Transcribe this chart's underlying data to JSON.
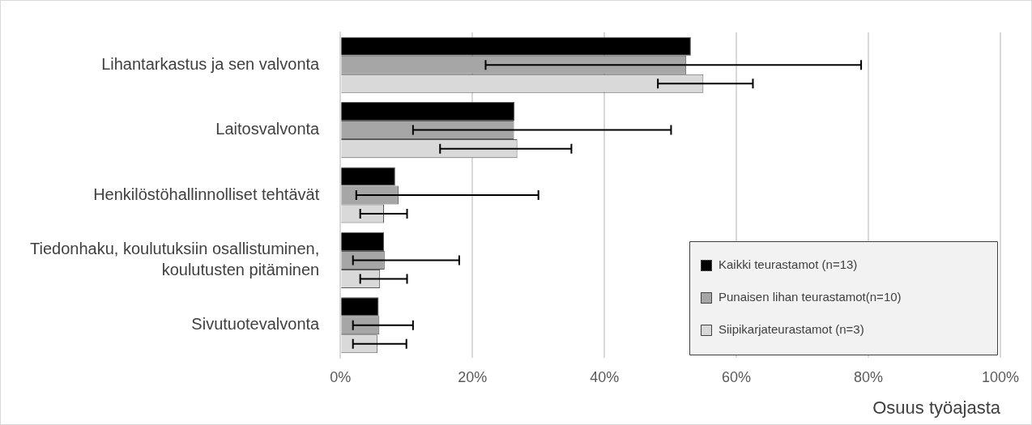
{
  "chart_data": {
    "type": "bar",
    "orientation": "horizontal",
    "xlabel": "Osuus työajasta",
    "categories": [
      "Lihantarkastus ja sen valvonta",
      "Laitosvalvonta",
      "Henkilöstöhallinnolliset tehtävät",
      "Tiedonhaku, koulutuksiin osallistuminen, koulutusten pitäminen",
      "Sivutuotevalvonta"
    ],
    "series": [
      {
        "name": "Kaikki teurastamot (n=13)",
        "color": "#000000",
        "values": [
          53.1,
          26.4,
          8.3,
          6.6,
          5.8
        ]
      },
      {
        "name": "Punaisen lihan teurastamot(n=10)",
        "color": "#a6a6a6",
        "values": [
          52.4,
          26.3,
          8.8,
          6.7,
          5.9
        ],
        "errors": [
          [
            22.0,
            78.9
          ],
          [
            11.0,
            50.1
          ],
          [
            2.4,
            30.0
          ],
          [
            1.9,
            18.0
          ],
          [
            1.9,
            11.0
          ]
        ]
      },
      {
        "name": "Siipikarjateurastamot (n=3)",
        "color": "#d9d9d9",
        "values": [
          55.0,
          26.8,
          6.6,
          6.0,
          5.6
        ],
        "errors": [
          [
            48.1,
            62.5
          ],
          [
            15.1,
            35.0
          ],
          [
            3.0,
            10.1
          ],
          [
            3.0,
            10.1
          ],
          [
            1.9,
            10.0
          ]
        ]
      }
    ],
    "xlim": [
      0,
      100
    ],
    "xticks": [
      {
        "value": 0,
        "label": "0%"
      },
      {
        "value": 20,
        "label": "20%"
      },
      {
        "value": 40,
        "label": "40%"
      },
      {
        "value": 60,
        "label": "60%"
      },
      {
        "value": 80,
        "label": "80%"
      },
      {
        "value": 100,
        "label": "100%"
      }
    ],
    "grid": "x",
    "legend": "bottom right"
  }
}
